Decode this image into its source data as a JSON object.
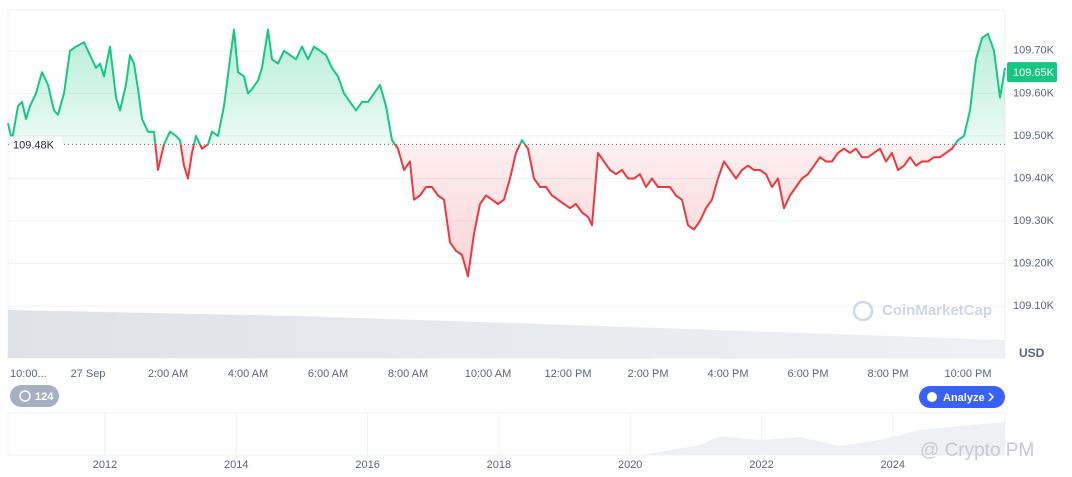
{
  "chart_data": {
    "type": "line",
    "x": [
      -2,
      -1.9,
      -1.75,
      -1.65,
      -1.55,
      -1.45,
      -1.3,
      -1.15,
      -1,
      -0.85,
      -0.75,
      -0.6,
      -0.45,
      -0.3,
      -0.1,
      0.05,
      0.2,
      0.3,
      0.4,
      0.55,
      0.7,
      0.8,
      0.95,
      1.05,
      1.15,
      1.25,
      1.35,
      1.5,
      1.65,
      1.75,
      1.9,
      2.05,
      2.2,
      2.3,
      2.4,
      2.5,
      2.6,
      2.7,
      2.85,
      3,
      3.1,
      3.25,
      3.4,
      3.55,
      3.65,
      3.75,
      3.9,
      4,
      4.1,
      4.25,
      4.35,
      4.5,
      4.6,
      4.75,
      4.9,
      5.05,
      5.2,
      5.35,
      5.5,
      5.65,
      5.8,
      5.95,
      6.1,
      6.25,
      6.4,
      6.55,
      6.7,
      6.85,
      7,
      7.15,
      7.3,
      7.45,
      7.6,
      7.75,
      7.9,
      8.05,
      8.15,
      8.3,
      8.45,
      8.6,
      8.75,
      8.9,
      9.05,
      9.2,
      9.35,
      9.5,
      9.65,
      9.8,
      9.95,
      10.1,
      10.25,
      10.4,
      10.55,
      10.7,
      10.85,
      11,
      11.15,
      11.3,
      11.45,
      11.6,
      11.75,
      11.9,
      12.05,
      12.2,
      12.35,
      12.5,
      12.6,
      12.75,
      12.9,
      13.05,
      13.2,
      13.35,
      13.5,
      13.65,
      13.8,
      13.95,
      14.1,
      14.25,
      14.4,
      14.55,
      14.7,
      14.85,
      15,
      15.15,
      15.3,
      15.45,
      15.6,
      15.75,
      15.9,
      16.05,
      16.2,
      16.35,
      16.5,
      16.65,
      16.8,
      16.95,
      17.1,
      17.25,
      17.4,
      17.55,
      17.7,
      17.85,
      18,
      18.15,
      18.3,
      18.45,
      18.6,
      18.75,
      18.9,
      19.05,
      19.2,
      19.35,
      19.5,
      19.65,
      19.8,
      19.95,
      20.1,
      20.25,
      20.4,
      20.55,
      20.7,
      20.85,
      21,
      21.15,
      21.3,
      21.45,
      21.6,
      21.75,
      21.9,
      22.05,
      22.2,
      22.35,
      22.5,
      22.65,
      22.8,
      22.925
    ],
    "values": [
      109530,
      109490,
      109570,
      109580,
      109540,
      109570,
      109600,
      109650,
      109620,
      109560,
      109550,
      109600,
      109700,
      109710,
      109720,
      109690,
      109660,
      109670,
      109640,
      109710,
      109590,
      109560,
      109620,
      109690,
      109670,
      109610,
      109540,
      109510,
      109510,
      109420,
      109480,
      109510,
      109500,
      109490,
      109430,
      109400,
      109460,
      109500,
      109470,
      109480,
      109510,
      109500,
      109570,
      109680,
      109750,
      109650,
      109640,
      109600,
      109610,
      109630,
      109660,
      109750,
      109680,
      109670,
      109700,
      109690,
      109680,
      109710,
      109680,
      109710,
      109700,
      109690,
      109660,
      109640,
      109600,
      109580,
      109560,
      109580,
      109580,
      109600,
      109620,
      109570,
      109490,
      109470,
      109420,
      109440,
      109350,
      109360,
      109380,
      109380,
      109360,
      109350,
      109250,
      109230,
      109220,
      109170,
      109270,
      109340,
      109360,
      109350,
      109340,
      109350,
      109400,
      109460,
      109490,
      109470,
      109400,
      109380,
      109380,
      109360,
      109350,
      109340,
      109330,
      109340,
      109320,
      109310,
      109290,
      109460,
      109440,
      109420,
      109410,
      109420,
      109400,
      109400,
      109410,
      109380,
      109400,
      109380,
      109380,
      109380,
      109360,
      109350,
      109290,
      109280,
      109300,
      109330,
      109350,
      109400,
      109440,
      109420,
      109400,
      109420,
      109430,
      109420,
      109420,
      109410,
      109380,
      109400,
      109330,
      109360,
      109380,
      109400,
      109410,
      109430,
      109450,
      109440,
      109440,
      109460,
      109470,
      109460,
      109470,
      109450,
      109450,
      109460,
      109470,
      109440,
      109460,
      109420,
      109430,
      109450,
      109430,
      109440,
      109440,
      109450,
      109450,
      109460,
      109470,
      109490,
      109500,
      109560,
      109680,
      109730,
      109740,
      109700,
      109590,
      109660
    ],
    "up_color": "#16c784",
    "down_color": "#ea3943",
    "baseline": {
      "value": 109480,
      "label": "109.48K"
    },
    "current_price": {
      "value": 109650,
      "label": "109.65K"
    },
    "xlim": [
      -2,
      22.925
    ],
    "xticks": [
      {
        "value": -2,
        "label": "10:00..."
      },
      {
        "value": 0,
        "label": "27 Sep"
      },
      {
        "value": 2,
        "label": "2:00 AM"
      },
      {
        "value": 4,
        "label": "4:00 AM"
      },
      {
        "value": 6,
        "label": "6:00 AM"
      },
      {
        "value": 8,
        "label": "8:00 AM"
      },
      {
        "value": 10,
        "label": "10:00 AM"
      },
      {
        "value": 12,
        "label": "12:00 PM"
      },
      {
        "value": 14,
        "label": "2:00 PM"
      },
      {
        "value": 16,
        "label": "4:00 PM"
      },
      {
        "value": 18,
        "label": "6:00 PM"
      },
      {
        "value": 20,
        "label": "8:00 PM"
      },
      {
        "value": 22,
        "label": "10:00 PM"
      }
    ],
    "ylim": [
      108978,
      109796
    ],
    "yticks": [
      {
        "value": 109100,
        "label": "109.10K"
      },
      {
        "value": 109200,
        "label": "109.20K"
      },
      {
        "value": 109300,
        "label": "109.30K"
      },
      {
        "value": 109400,
        "label": "109.40K"
      },
      {
        "value": 109500,
        "label": "109.50K"
      },
      {
        "value": 109600,
        "label": "109.60K"
      },
      {
        "value": 109700,
        "label": "109.70K"
      }
    ],
    "grid": true,
    "currency": "USD",
    "watermark": "CoinMarketCap",
    "history_count": "124",
    "analyze_button": "Analyze",
    "navigator_years": [
      2012,
      2014,
      2016,
      2018,
      2020,
      2022,
      2024
    ],
    "overlay_text": "@ Crypto PM"
  }
}
